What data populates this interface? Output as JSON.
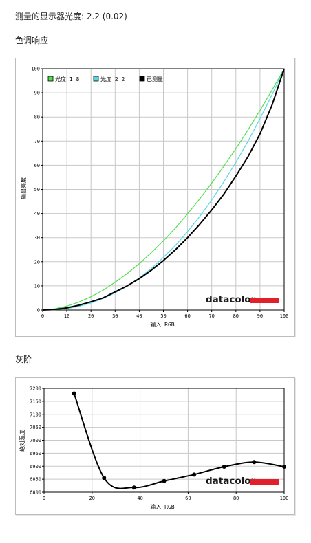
{
  "header": {
    "gamma_label": "测量的显示器光度: 2.2 (0.02)",
    "tone_section": "色调响应",
    "gray_section": "灰阶"
  },
  "brand": {
    "name": "datacolor",
    "red": "#e0202a",
    "text_color": "#1a1a1a"
  },
  "colors": {
    "green": "#4fe04f",
    "cyan": "#55d7e8",
    "black": "#000000",
    "grid": "#c8c8c8"
  },
  "chart_data": [
    {
      "type": "line",
      "title": "",
      "xlabel": "输入 RGB",
      "ylabel": "输出亮度",
      "xlim": [
        0,
        100
      ],
      "ylim": [
        0,
        100
      ],
      "xticks": [
        0,
        10,
        20,
        30,
        40,
        50,
        60,
        70,
        80,
        90,
        100
      ],
      "yticks": [
        0,
        10,
        20,
        30,
        40,
        50,
        60,
        70,
        80,
        90,
        100
      ],
      "grid": true,
      "legend_position": "top-left",
      "series": [
        {
          "name": "光度 1.8",
          "legend_label": "光度 1 8",
          "color": "green",
          "gamma": 1.8,
          "x": [
            0,
            5,
            10,
            15,
            20,
            25,
            30,
            35,
            40,
            45,
            50,
            55,
            60,
            65,
            70,
            75,
            80,
            85,
            90,
            95,
            100
          ],
          "y": [
            0,
            0.5,
            1.6,
            3.3,
            5.5,
            8.2,
            11.5,
            15.1,
            19.2,
            23.8,
            28.7,
            34.0,
            39.9,
            46.0,
            52.6,
            59.6,
            66.9,
            74.6,
            82.7,
            91.2,
            100
          ]
        },
        {
          "name": "光度 2.2",
          "legend_label": "光度 2 2",
          "color": "cyan",
          "gamma": 2.2,
          "x": [
            0,
            5,
            10,
            15,
            20,
            25,
            30,
            35,
            40,
            45,
            50,
            55,
            60,
            65,
            70,
            75,
            80,
            85,
            90,
            95,
            100
          ],
          "y": [
            0,
            0.1,
            0.6,
            1.5,
            2.9,
            4.8,
            7.1,
            9.9,
            13.3,
            17.2,
            21.8,
            26.8,
            32.5,
            38.7,
            45.6,
            53.1,
            61.2,
            69.9,
            79.3,
            89.3,
            100
          ]
        },
        {
          "name": "已测量",
          "legend_label": "已测量",
          "color": "black",
          "x": [
            0,
            5,
            10,
            15,
            20,
            25,
            30,
            35,
            40,
            45,
            50,
            55,
            60,
            65,
            70,
            75,
            80,
            85,
            90,
            95,
            100
          ],
          "y": [
            0,
            0.2,
            0.9,
            2.0,
            3.4,
            5.0,
            7.5,
            10.0,
            13.0,
            16.5,
            20.5,
            25.0,
            30.0,
            35.5,
            41.5,
            48.0,
            55.5,
            63.5,
            73.0,
            85.0,
            100
          ]
        }
      ]
    },
    {
      "type": "line",
      "title": "",
      "xlabel": "输入 RGB",
      "ylabel": "绝对温度",
      "xlim": [
        0,
        100
      ],
      "ylim": [
        6800,
        7200
      ],
      "xticks": [
        0,
        20,
        40,
        60,
        80,
        100
      ],
      "yticks": [
        6800,
        6850,
        6900,
        6950,
        7000,
        7050,
        7100,
        7150,
        7200
      ],
      "grid": true,
      "series": [
        {
          "name": "",
          "color": "black",
          "x": [
            12.5,
            25,
            37.5,
            50,
            62.5,
            75,
            87.5,
            100
          ],
          "y": [
            7180,
            6855,
            6818,
            6843,
            6868,
            6898,
            6916,
            6898
          ]
        }
      ]
    }
  ]
}
